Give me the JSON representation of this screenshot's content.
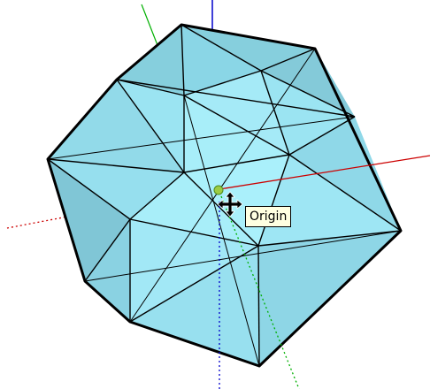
{
  "app": {
    "background": "#ffffff"
  },
  "model": {
    "shape": "icosahedron",
    "face_color": "#8fdcec",
    "edge_color": "#000000"
  },
  "axes": {
    "red_axis_color": "#cc0000",
    "green_axis_color": "#00b000",
    "blue_axis_color": "#0000cc"
  },
  "cursor": {
    "icon": "move-cursor-icon",
    "inference_point_color": "#9ccc44"
  },
  "tooltip": {
    "label": "Origin"
  }
}
